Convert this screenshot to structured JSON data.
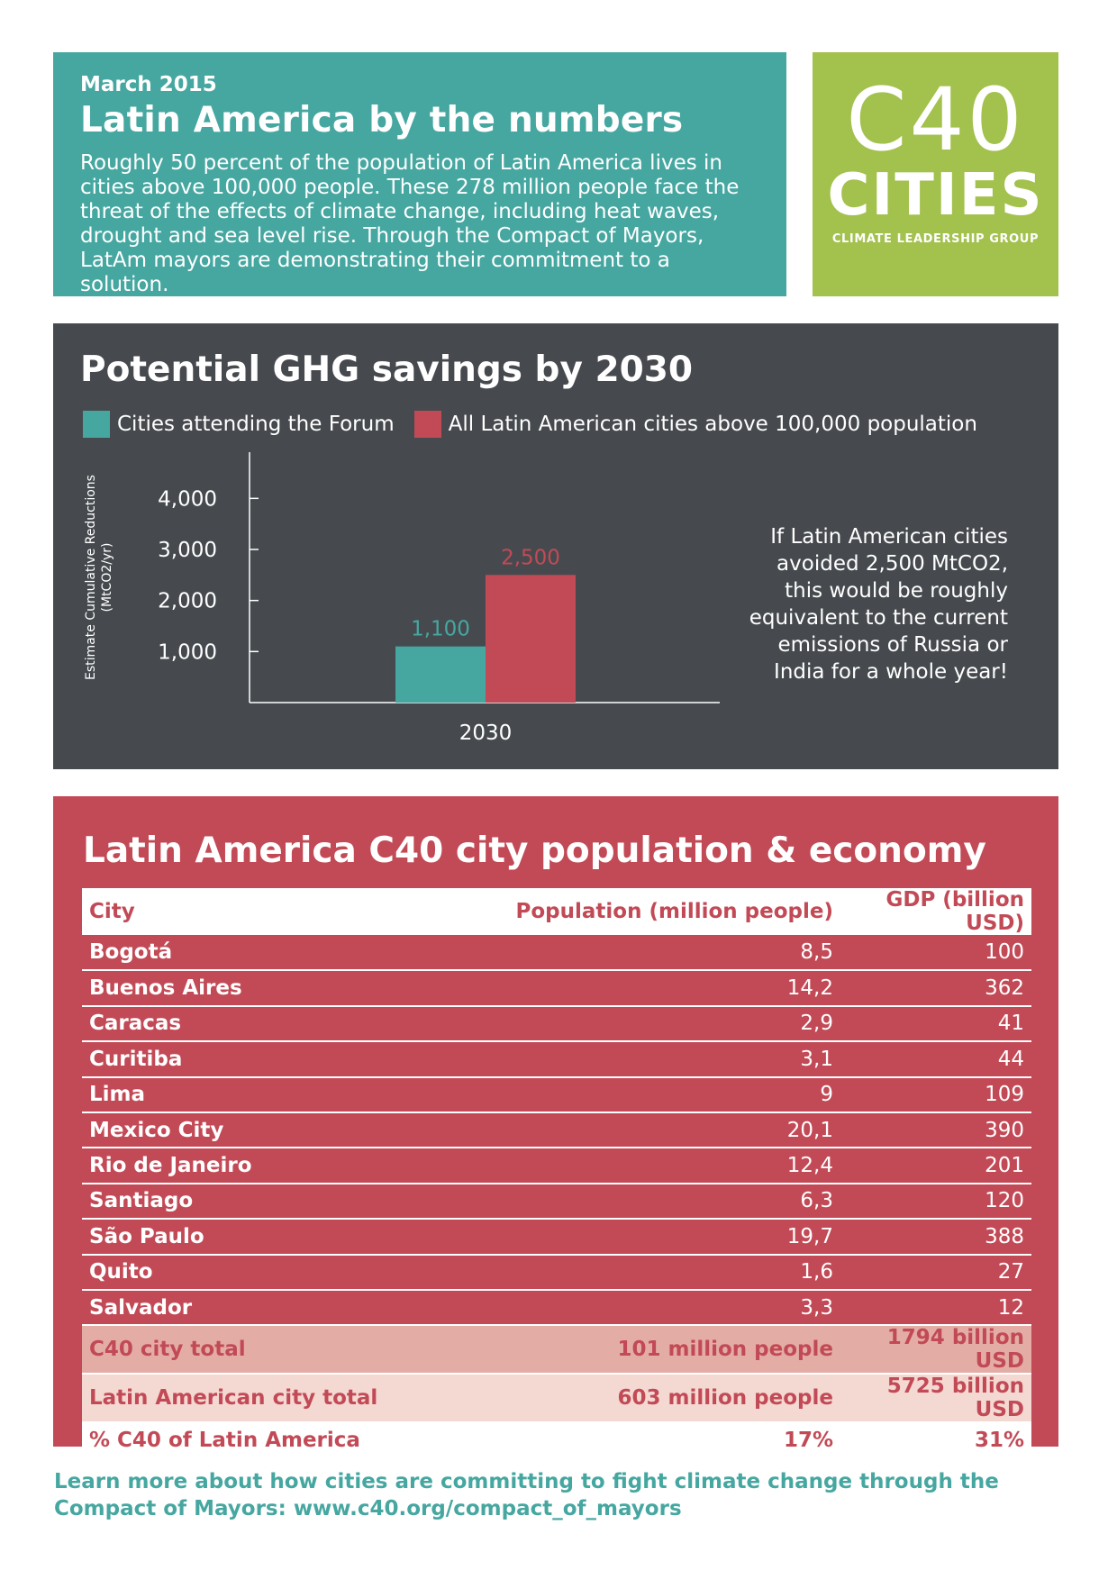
{
  "intro": {
    "date": "March 2015",
    "title": "Latin America by the numbers",
    "body": "Roughly 50 percent of the population of Latin America lives in cities above 100,000 people. These 278 million people face the threat of the effects of climate change, including heat waves, drought and sea level rise. Through the Compact of Mayors, LatAm mayors are demonstrating their commitment to a solution."
  },
  "logo": {
    "line1": "C40",
    "line2": "CITIES",
    "tagline": "CLIMATE LEADERSHIP GROUP"
  },
  "ghg": {
    "title": "Potential GHG savings by 2030",
    "note": "If Latin American cities avoided 2,500 MtCO2, this would be roughly equivalent to the current emissions of Russia or India for a whole year!"
  },
  "chart_data": {
    "type": "bar",
    "title": "Potential GHG savings by 2030",
    "categories": [
      "2030"
    ],
    "series": [
      {
        "name": "Cities attending the Forum",
        "values": [
          1100
        ],
        "label": "1,100",
        "color": "#46a7a1"
      },
      {
        "name": "All Latin American cities above 100,000 population",
        "values": [
          2500
        ],
        "label": "2,500",
        "color": "#c24a56"
      }
    ],
    "ylabel_line1": "Estimate Cumulative  Reductions",
    "ylabel_line2": "(MtCO2/yr)",
    "yticks": [
      1000,
      2000,
      3000,
      4000
    ],
    "ytick_labels": [
      "1,000",
      "2,000",
      "3,000",
      "4,000"
    ],
    "ylim": [
      0,
      5000
    ],
    "grid": false,
    "legend": "top-left"
  },
  "table": {
    "title": "Latin America C40 city population & economy",
    "headers": [
      "City",
      "Population (million people)",
      "GDP (billion USD)"
    ],
    "rows": [
      [
        "Bogotá",
        "8,5",
        "100"
      ],
      [
        "Buenos Aires",
        "14,2",
        "362"
      ],
      [
        "Caracas",
        "2,9",
        "41"
      ],
      [
        "Curitiba",
        "3,1",
        "44"
      ],
      [
        "Lima",
        "9",
        "109"
      ],
      [
        "Mexico City",
        "20,1",
        "390"
      ],
      [
        "Rio de Janeiro",
        "12,4",
        "201"
      ],
      [
        "Santiago",
        "6,3",
        "120"
      ],
      [
        "São Paulo",
        "19,7",
        "388"
      ],
      [
        "Quito",
        "1,6",
        "27"
      ],
      [
        "Salvador",
        "3,3",
        "12"
      ]
    ],
    "c40_total": [
      "C40 city total",
      "101 million people",
      "1794 billion USD"
    ],
    "latam_total": [
      "Latin American city total",
      "603 million people",
      "5725 billion USD"
    ],
    "pct": [
      "% C40 of Latin America",
      "17%",
      "31%"
    ]
  },
  "footer": {
    "line1": "Learn more about how cities are committing to fight climate change through the",
    "line2": "Compact of Mayors: www.c40.org/compact_of_mayors"
  }
}
